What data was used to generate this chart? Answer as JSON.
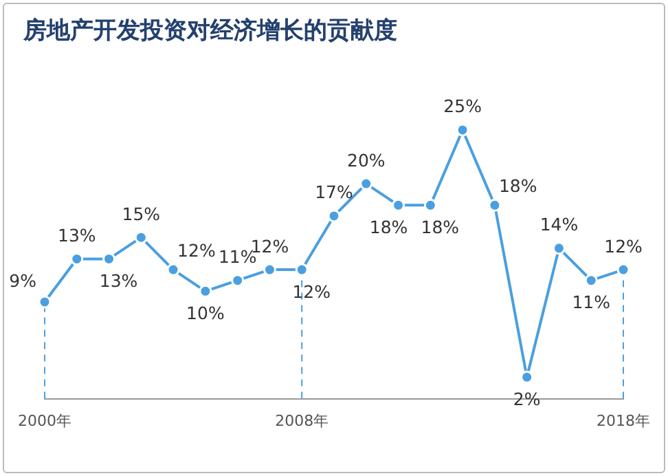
{
  "chart_data": {
    "type": "line",
    "title": "房地产开发投资对经济增长的贡献度",
    "categories": [
      "2000年",
      null,
      null,
      null,
      null,
      null,
      null,
      null,
      "2008年",
      null,
      null,
      null,
      null,
      null,
      null,
      null,
      null,
      null,
      "2018年"
    ],
    "series": [
      {
        "color": "#4a9fe0",
        "values": [
          9,
          13,
          13,
          15,
          12,
          10,
          11,
          12,
          12,
          17,
          20,
          18,
          18,
          25,
          18,
          2,
          14,
          11,
          12
        ],
        "value_labels": [
          "9%",
          "13%",
          "13%",
          "15%",
          "12%",
          "10%",
          "11%",
          "12%",
          "12%",
          "17%",
          "20%",
          "18%",
          "18%",
          "25%",
          "18%",
          "2%",
          "14%",
          "11%",
          "12%"
        ]
      }
    ],
    "marker": "circle",
    "line_style": "solid",
    "legend": false,
    "ref_lines": [
      {
        "axis": "x",
        "value": "2000年",
        "line_style": "dashed",
        "color": "#4a9fe0"
      },
      {
        "axis": "x",
        "value": "2008年",
        "line_style": "dashed",
        "color": "#4a9fe0"
      },
      {
        "axis": "x",
        "value": "2018年",
        "line_style": "dashed",
        "color": "#4a9fe0"
      }
    ]
  }
}
